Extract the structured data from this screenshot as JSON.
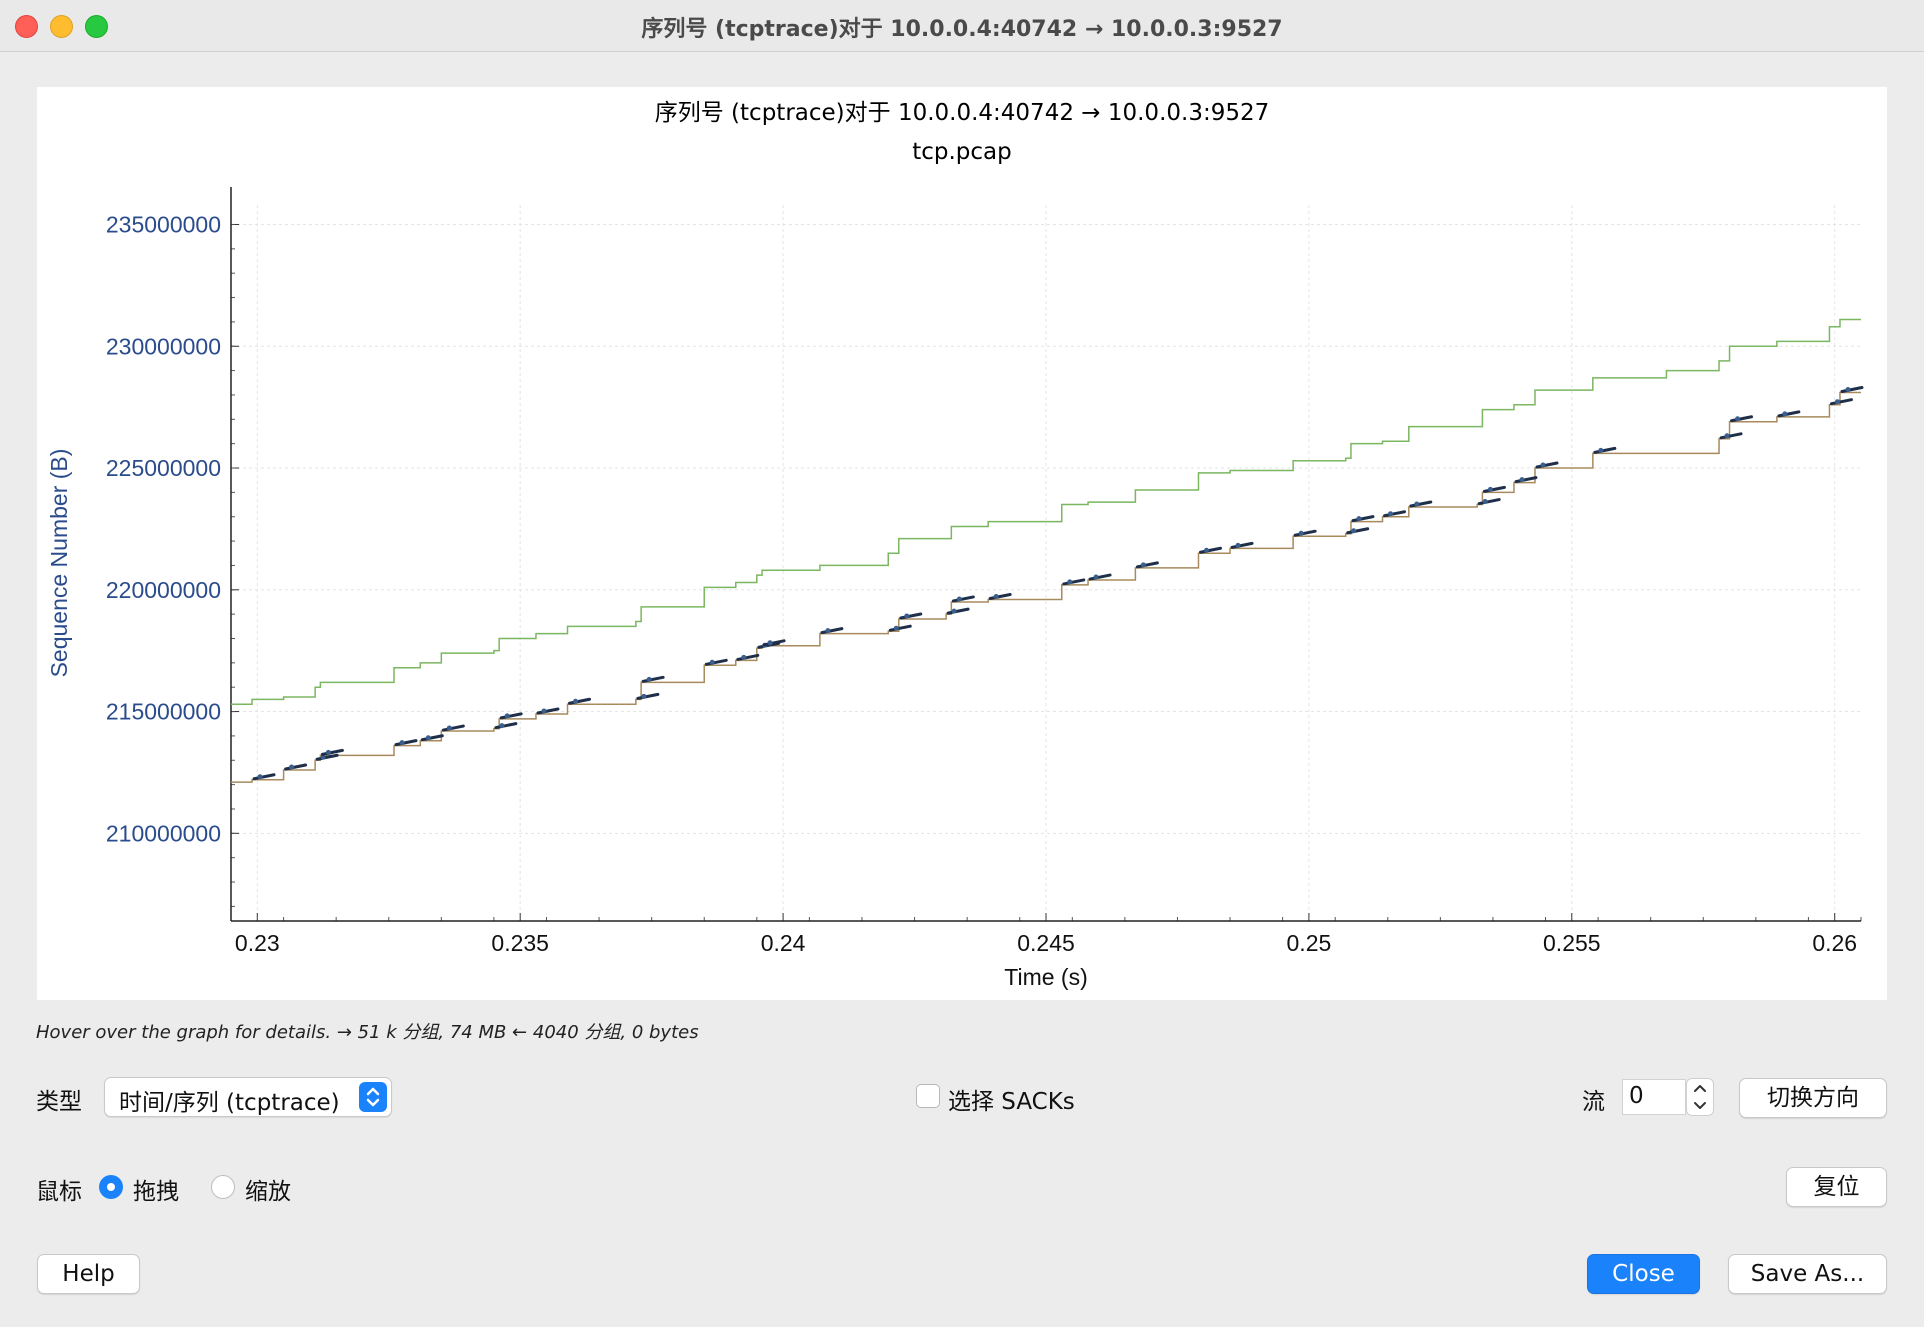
{
  "window": {
    "title": "序列号 (tcptrace)对于 10.0.0.4:40742 → 10.0.0.3:9527"
  },
  "graph": {
    "title": "序列号 (tcptrace)对于 10.0.0.4:40742 → 10.0.0.3:9527",
    "subtitle": "tcp.pcap"
  },
  "chart_data": {
    "type": "line",
    "title": "序列号 (tcptrace)对于 10.0.0.4:40742 → 10.0.0.3:9527",
    "subtitle": "tcp.pcap",
    "xlabel": "Time (s)",
    "ylabel": "Sequence Number (B)",
    "xlim": [
      0.2295,
      0.2605
    ],
    "ylim": [
      206400000,
      235800000
    ],
    "x_ticks": [
      "0.23",
      "0.235",
      "0.24",
      "0.245",
      "0.25",
      "0.255",
      "0.26"
    ],
    "y_ticks": [
      "235000000",
      "230000000",
      "225000000",
      "220000000",
      "215000000",
      "210000000"
    ],
    "grid": true,
    "series": [
      {
        "role": "receive window",
        "color": "#7bb661",
        "step": true,
        "points": [
          [
            0.2295,
            215300000
          ],
          [
            0.2299,
            215500000
          ],
          [
            0.2305,
            215600000
          ],
          [
            0.2306,
            215600000
          ],
          [
            0.2311,
            216000000
          ],
          [
            0.2312,
            216200000
          ],
          [
            0.2325,
            216200000
          ],
          [
            0.2326,
            216800000
          ],
          [
            0.2331,
            217000000
          ],
          [
            0.2335,
            217400000
          ],
          [
            0.2345,
            217500000
          ],
          [
            0.2346,
            218000000
          ],
          [
            0.2353,
            218200000
          ],
          [
            0.2359,
            218500000
          ],
          [
            0.2372,
            218700000
          ],
          [
            0.2373,
            219300000
          ],
          [
            0.2384,
            219300000
          ],
          [
            0.2385,
            220100000
          ],
          [
            0.2391,
            220300000
          ],
          [
            0.2395,
            220600000
          ],
          [
            0.2396,
            220800000
          ],
          [
            0.2402,
            220800000
          ],
          [
            0.2407,
            221000000
          ],
          [
            0.242,
            221500000
          ],
          [
            0.2422,
            222100000
          ],
          [
            0.2431,
            222100000
          ],
          [
            0.2432,
            222600000
          ],
          [
            0.2439,
            222800000
          ],
          [
            0.2452,
            222800000
          ],
          [
            0.2453,
            223500000
          ],
          [
            0.2458,
            223600000
          ],
          [
            0.2467,
            224100000
          ],
          [
            0.2478,
            224100000
          ],
          [
            0.2479,
            224800000
          ],
          [
            0.2485,
            224900000
          ],
          [
            0.2497,
            225300000
          ],
          [
            0.2507,
            225400000
          ],
          [
            0.2508,
            226000000
          ],
          [
            0.2514,
            226100000
          ],
          [
            0.2519,
            226700000
          ],
          [
            0.2532,
            226700000
          ],
          [
            0.2533,
            227400000
          ],
          [
            0.2539,
            227600000
          ],
          [
            0.2543,
            228200000
          ],
          [
            0.2553,
            228200000
          ],
          [
            0.2554,
            228700000
          ],
          [
            0.2568,
            229000000
          ],
          [
            0.2578,
            229400000
          ],
          [
            0.258,
            230000000
          ],
          [
            0.2589,
            230200000
          ],
          [
            0.2599,
            230800000
          ],
          [
            0.2601,
            231100000
          ],
          [
            0.2605,
            231100000
          ]
        ]
      },
      {
        "role": "sequence",
        "color": "#1f2f4a",
        "step": true,
        "points": [
          [
            0.2295,
            212100000
          ],
          [
            0.2299,
            212200000
          ],
          [
            0.2305,
            212600000
          ],
          [
            0.2306,
            212600000
          ],
          [
            0.2311,
            213000000
          ],
          [
            0.2312,
            213200000
          ],
          [
            0.2325,
            213200000
          ],
          [
            0.2326,
            213600000
          ],
          [
            0.2331,
            213800000
          ],
          [
            0.2335,
            214200000
          ],
          [
            0.2345,
            214300000
          ],
          [
            0.2346,
            214700000
          ],
          [
            0.2353,
            214900000
          ],
          [
            0.2359,
            215300000
          ],
          [
            0.2372,
            215500000
          ],
          [
            0.2373,
            216200000
          ],
          [
            0.2384,
            216200000
          ],
          [
            0.2385,
            216900000
          ],
          [
            0.2391,
            217100000
          ],
          [
            0.2395,
            217600000
          ],
          [
            0.2396,
            217700000
          ],
          [
            0.2402,
            217700000
          ],
          [
            0.2407,
            218200000
          ],
          [
            0.242,
            218300000
          ],
          [
            0.2422,
            218800000
          ],
          [
            0.2431,
            219000000
          ],
          [
            0.2432,
            219500000
          ],
          [
            0.2439,
            219600000
          ],
          [
            0.2452,
            219600000
          ],
          [
            0.2453,
            220200000
          ],
          [
            0.2458,
            220400000
          ],
          [
            0.2467,
            220900000
          ],
          [
            0.2478,
            220900000
          ],
          [
            0.2479,
            221500000
          ],
          [
            0.2485,
            221700000
          ],
          [
            0.2497,
            222200000
          ],
          [
            0.2507,
            222300000
          ],
          [
            0.2508,
            222800000
          ],
          [
            0.2514,
            223000000
          ],
          [
            0.2519,
            223400000
          ],
          [
            0.2532,
            223500000
          ],
          [
            0.2533,
            224000000
          ],
          [
            0.2539,
            224400000
          ],
          [
            0.2543,
            225000000
          ],
          [
            0.2553,
            225000000
          ],
          [
            0.2554,
            225600000
          ],
          [
            0.2568,
            225600000
          ],
          [
            0.2578,
            226200000
          ],
          [
            0.258,
            226900000
          ],
          [
            0.2589,
            227100000
          ],
          [
            0.2599,
            227600000
          ],
          [
            0.2601,
            228100000
          ],
          [
            0.2605,
            228100000
          ]
        ]
      }
    ]
  },
  "status": {
    "hint": "Hover over the graph for details. → 51 k 分组, 74 MB ← 4040 分组, 0 bytes"
  },
  "controls": {
    "type_label": "类型",
    "type_value": "时间/序列 (tcptrace)",
    "sacks_label": "选择 SACKs",
    "sacks_checked": false,
    "stream_label": "流",
    "stream_value": "0",
    "switch_direction": "切换方向",
    "mouse_label": "鼠标",
    "mouse_drag": "拖拽",
    "mouse_zoom": "缩放",
    "mouse_selected": "drag",
    "reset": "复位"
  },
  "footer": {
    "help": "Help",
    "close": "Close",
    "save_as": "Save As..."
  },
  "colors": {
    "accent": "#1a82fb",
    "axis_text": "#2b4c8c",
    "window_line": "#7bb661",
    "seq_marks": "#1f2f4a",
    "ack_line": "#a88a5c"
  }
}
